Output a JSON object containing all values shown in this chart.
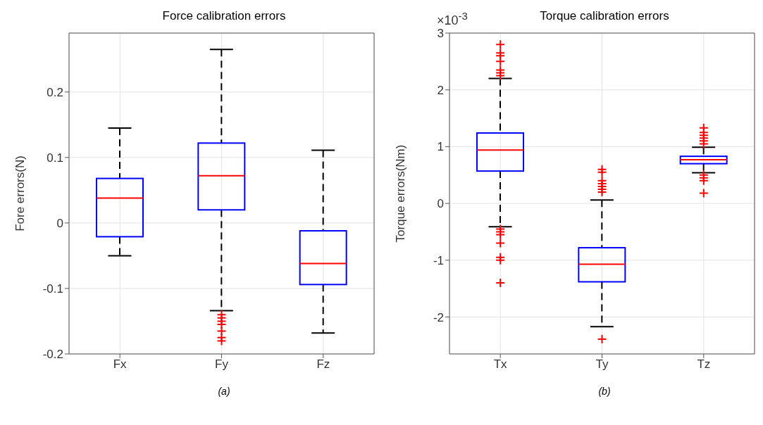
{
  "chart_data": [
    {
      "type": "box",
      "title": "Force calibration errors",
      "ylabel": "Fore errors(N)",
      "categories": [
        "Fx",
        "Fy",
        "Fz"
      ],
      "ylim": [
        -0.2,
        0.29
      ],
      "yticks": [
        -0.2,
        -0.1,
        0,
        0.1,
        0.2
      ],
      "grid": true,
      "annotations": [
        "(a)"
      ],
      "series": [
        {
          "color": "#0000ff",
          "boxes": [
            {
              "low": -0.05,
              "q1": -0.021,
              "median": 0.038,
              "q3": 0.068,
              "high": 0.145
            },
            {
              "low": -0.134,
              "q1": 0.02,
              "median": 0.072,
              "q3": 0.122,
              "high": 0.265,
              "outliers": [
                -0.14,
                -0.145,
                -0.15,
                -0.155,
                -0.165,
                -0.175,
                -0.18
              ]
            },
            {
              "low": -0.168,
              "q1": -0.094,
              "median": -0.062,
              "q3": -0.012,
              "high": 0.111
            }
          ]
        }
      ]
    },
    {
      "type": "box",
      "title": "Torque calibration errors",
      "ylabel": "Torque errors(Nm)",
      "categories": [
        "Tx",
        "Ty",
        "Tz"
      ],
      "ylim": [
        -2.65,
        3
      ],
      "yticks": [
        -2,
        -1,
        0,
        1,
        2,
        3
      ],
      "grid": true,
      "annotations": [
        "×10$^{-3}$",
        "(b)"
      ],
      "series": [
        {
          "color": "#0000ff",
          "boxes": [
            {
              "low": -0.41,
              "q1": 0.57,
              "median": 0.94,
              "q3": 1.24,
              "high": 2.2,
              "outliers": [
                2.25,
                2.3,
                2.35,
                2.5,
                2.6,
                2.65,
                2.8,
                -0.45,
                -0.5,
                -0.55,
                -0.7,
                -0.95,
                -1.0,
                -1.4
              ]
            },
            {
              "low": -2.17,
              "q1": -1.38,
              "median": -1.07,
              "q3": -0.78,
              "high": 0.06,
              "outliers": [
                0.2,
                0.25,
                0.3,
                0.35,
                0.4,
                0.55,
                0.6,
                -2.39
              ]
            },
            {
              "low": 0.54,
              "q1": 0.7,
              "median": 0.77,
              "q3": 0.83,
              "high": 0.99,
              "outliers": [
                1.05,
                1.1,
                1.15,
                1.2,
                1.25,
                1.33,
                0.4,
                0.45,
                0.5,
                0.18
              ]
            }
          ]
        }
      ]
    }
  ]
}
